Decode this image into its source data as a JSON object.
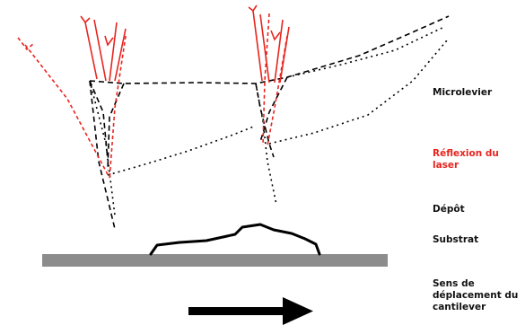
{
  "labels": {
    "microlevier": "Microlevier",
    "reflexion": "Réflexion du laser",
    "depot": "Dépôt",
    "substrat": "Substrat",
    "sens": "Sens de déplacement du cantilever"
  },
  "colors": {
    "laser": "#e8251f",
    "cantilever": "#111111",
    "substrate": "#8c8c8c",
    "text": "#111111",
    "text_highlight": "#e8251f"
  },
  "icons": {
    "direction": "right-arrow-icon"
  }
}
